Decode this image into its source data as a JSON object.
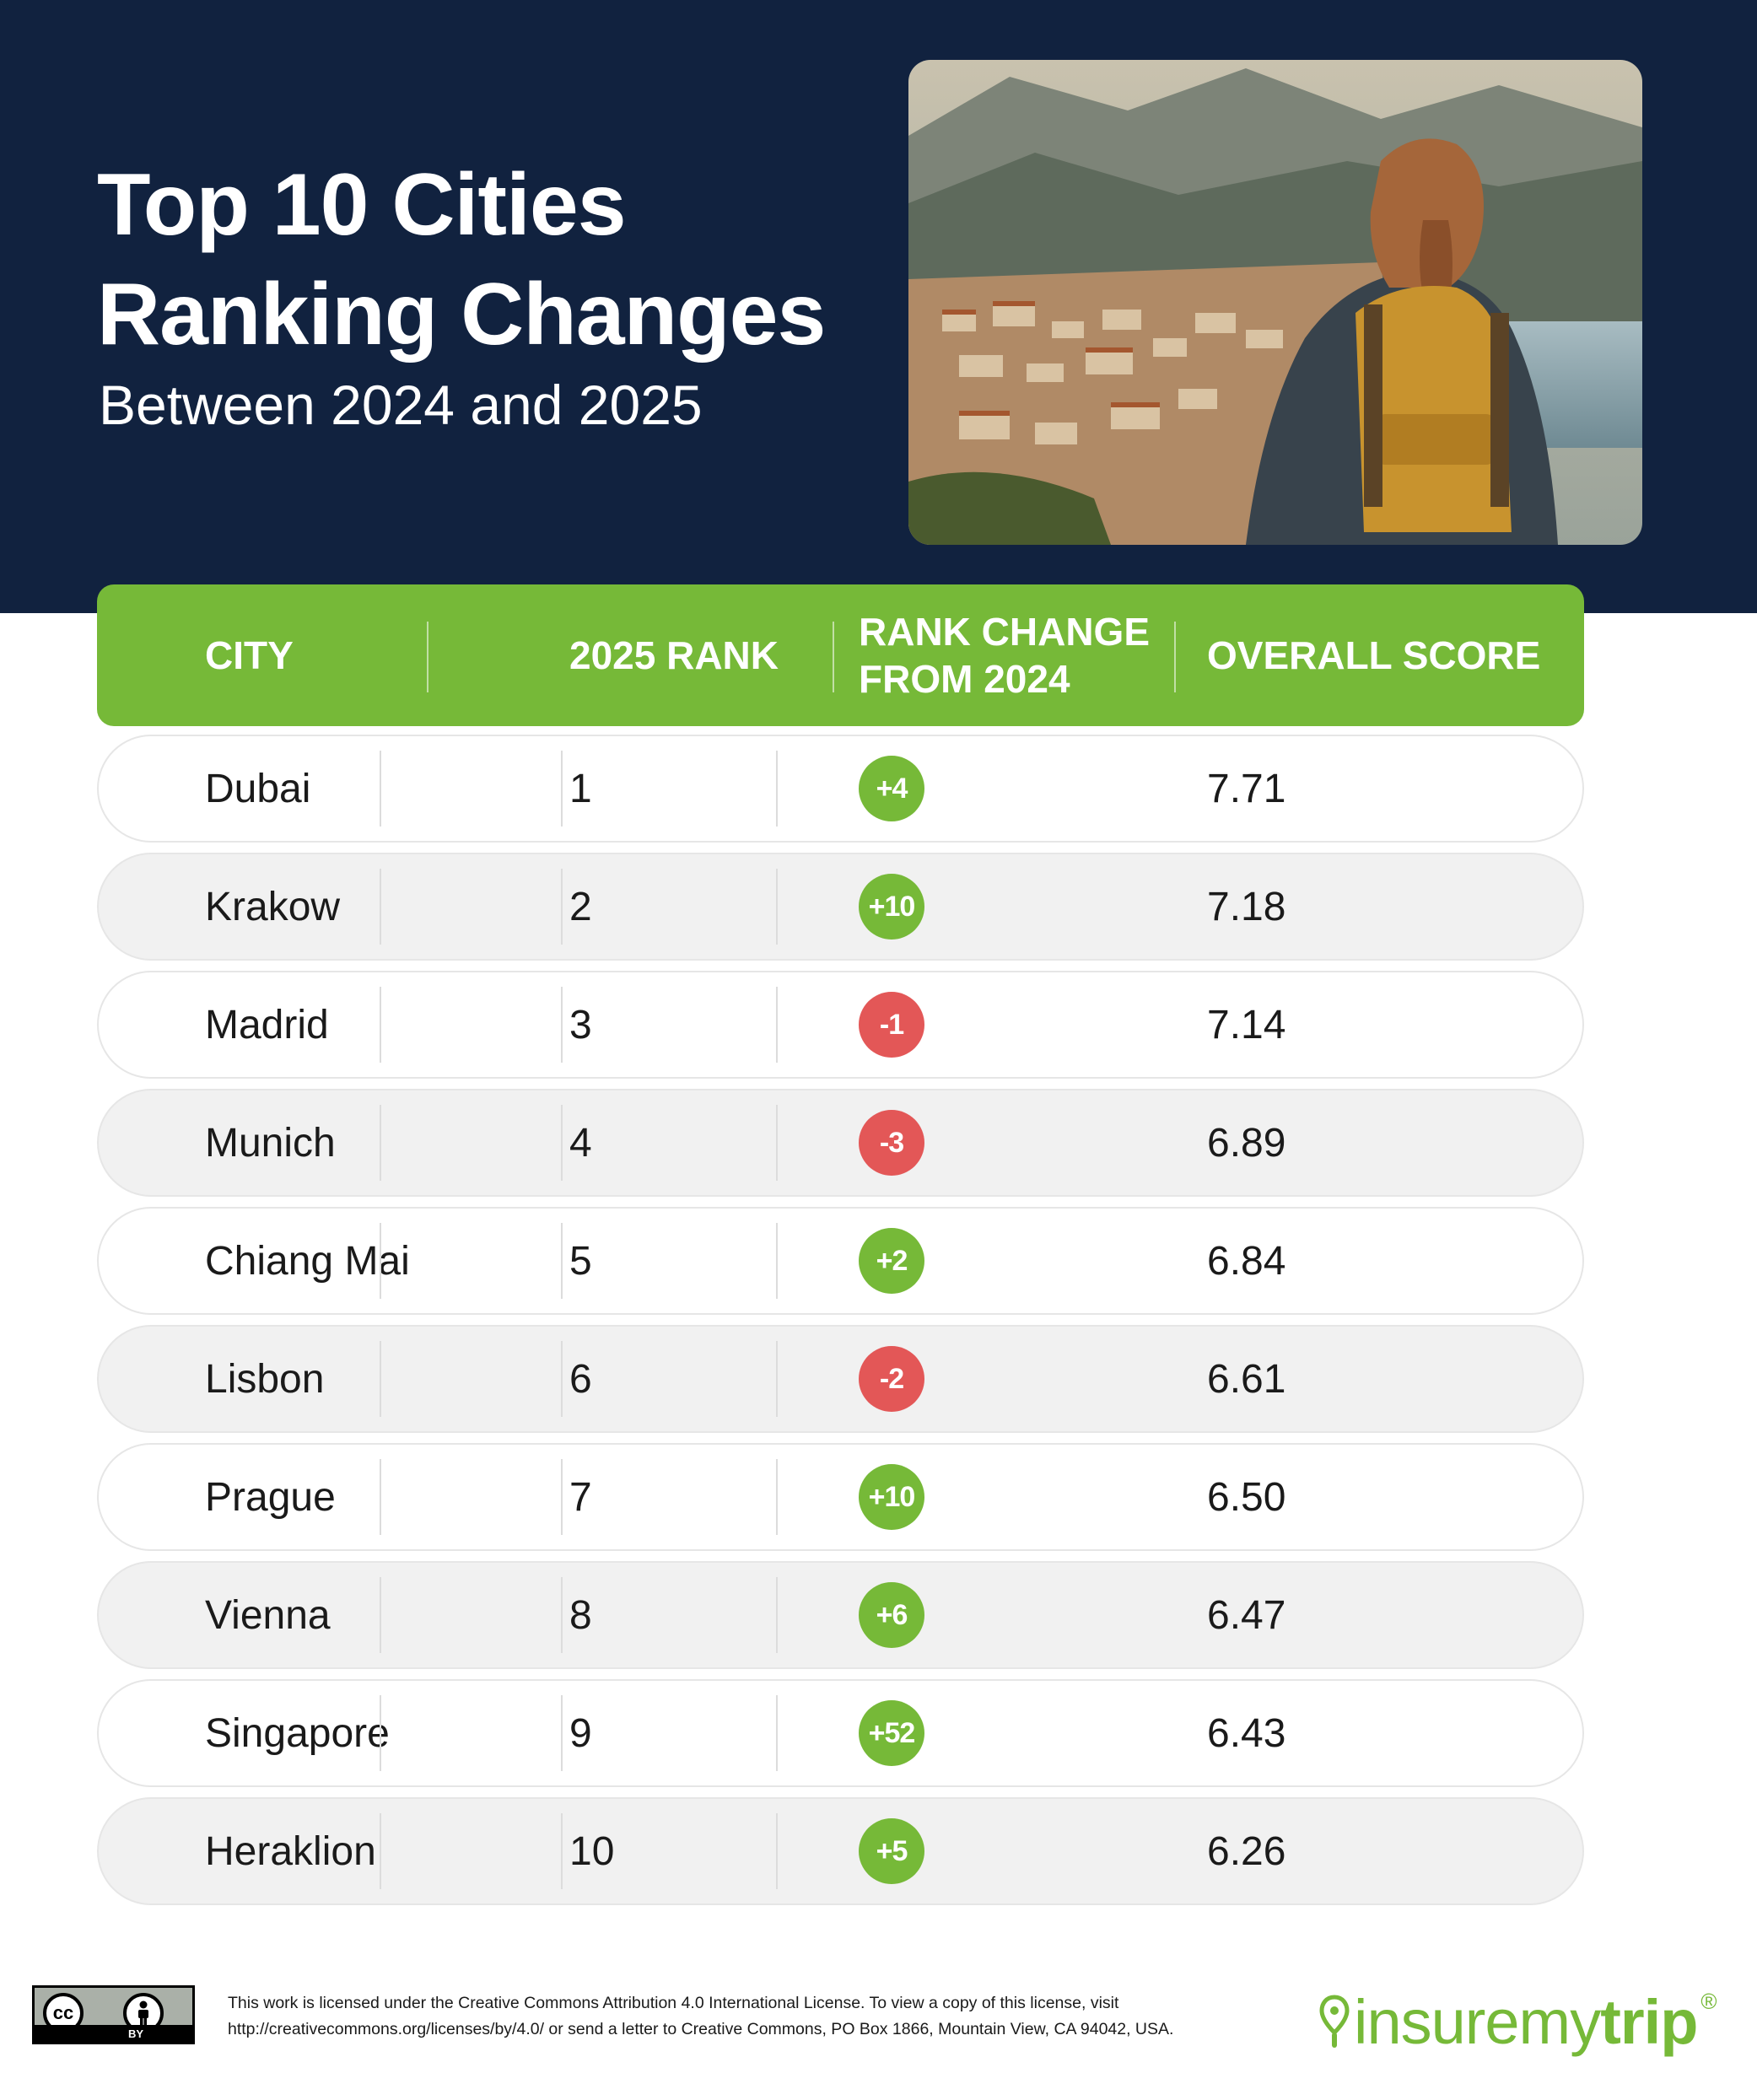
{
  "header": {
    "title_line1": "Top 10 Cities",
    "title_line2": "Ranking Changes",
    "subtitle": "Between 2024 and 2025"
  },
  "colors": {
    "navy": "#11223f",
    "green": "#76b938",
    "red": "#e35757"
  },
  "chart_data": {
    "type": "table",
    "columns": [
      "CITY",
      "2025 RANK",
      "RANK CHANGE FROM 2024",
      "OVERALL SCORE"
    ],
    "rows": [
      {
        "city": "Dubai",
        "rank": "1",
        "change": "+4",
        "score": "7.71"
      },
      {
        "city": "Krakow",
        "rank": "2",
        "change": "+10",
        "score": "7.18"
      },
      {
        "city": "Madrid",
        "rank": "3",
        "change": "-1",
        "score": "7.14"
      },
      {
        "city": "Munich",
        "rank": "4",
        "change": "-3",
        "score": "6.89"
      },
      {
        "city": "Chiang Mai",
        "rank": "5",
        "change": "+2",
        "score": "6.84"
      },
      {
        "city": "Lisbon",
        "rank": "6",
        "change": "-2",
        "score": "6.61"
      },
      {
        "city": "Prague",
        "rank": "7",
        "change": "+10",
        "score": "6.50"
      },
      {
        "city": "Vienna",
        "rank": "8",
        "change": "+6",
        "score": "6.47"
      },
      {
        "city": "Singapore",
        "rank": "9",
        "change": "+52",
        "score": "6.43"
      },
      {
        "city": "Heraklion",
        "rank": "10",
        "change": "+5",
        "score": "6.26"
      }
    ]
  },
  "footer": {
    "cc_label": "BY",
    "license_line1": "This work is licensed under the Creative Commons Attribution 4.0 International License. To view a copy of this license, visit",
    "license_line2": "http://creativecommons.org/licenses/by/4.0/ or send a letter to Creative Commons, PO Box 1866, Mountain View, CA 94042, USA.",
    "logo_part1": "insuremy",
    "logo_part2": "trip",
    "logo_reg": "®"
  }
}
